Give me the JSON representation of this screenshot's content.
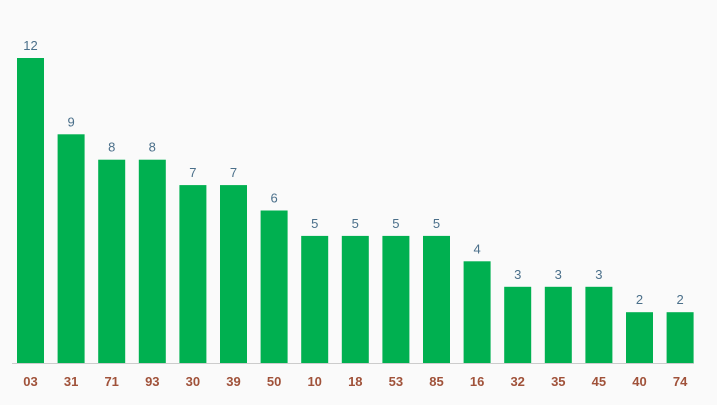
{
  "chart_data": {
    "type": "bar",
    "categories": [
      "03",
      "31",
      "71",
      "93",
      "30",
      "39",
      "50",
      "10",
      "18",
      "53",
      "85",
      "16",
      "32",
      "35",
      "45",
      "40",
      "74"
    ],
    "values": [
      12,
      9,
      8,
      8,
      7,
      7,
      6,
      5,
      5,
      5,
      5,
      4,
      3,
      3,
      3,
      2,
      2
    ],
    "title": "",
    "xlabel": "",
    "ylabel": "",
    "ylim": [
      0,
      12
    ],
    "grid": false,
    "legend": "none",
    "data_labels": true,
    "colors": {
      "bar": "#00b050",
      "value_label": "#4a6f8a",
      "tick_label": "#a0523a",
      "axis_line": "#cccccc",
      "background": "#fafafa"
    }
  }
}
